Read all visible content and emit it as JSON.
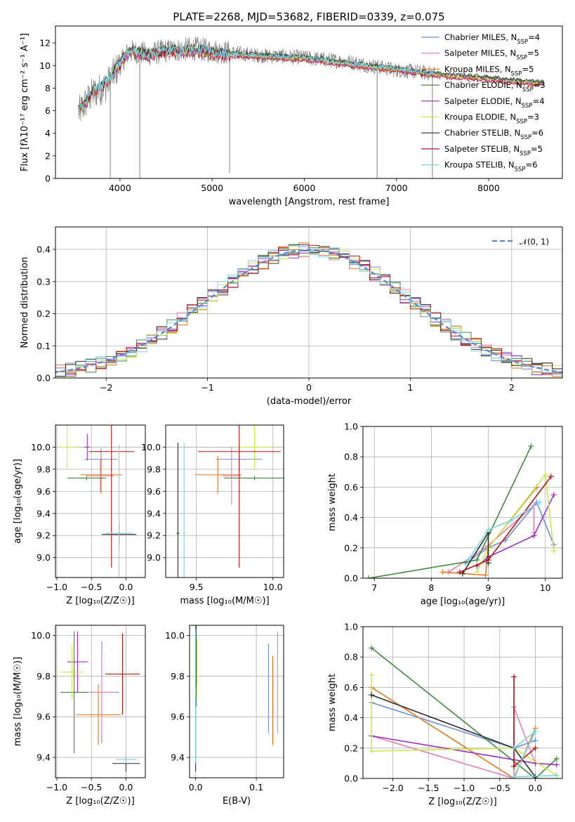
{
  "colors": {
    "Chabrier MILES": "#6b8fdc",
    "Salpeter MILES": "#e77fb3",
    "Kroupa MILES": "#e07a1f",
    "Chabrier ELODIE": "#3d8b3d",
    "Salpeter ELODIE": "#9c2fbf",
    "Kroupa ELODIE": "#c9e84d",
    "Chabrier STELIB": "#2b2b2b",
    "Salpeter STELIB": "#b31414",
    "Kroupa STELIB": "#7fd4e3"
  },
  "chart_data": [
    {
      "id": "spectrum",
      "type": "line",
      "title": "PLATE=2268, MJD=53682, FIBERID=0339, z=0.075",
      "xlabel": "wavelength [Angstrom, rest frame]",
      "ylabel": "Flux [fλ10⁻¹⁷ erg cm⁻² s⁻¹ A⁻¹]",
      "xlim": [
        3300,
        8800
      ],
      "ylim": [
        0,
        13.5
      ],
      "xticks": [
        4000,
        5000,
        6000,
        7000,
        8000
      ],
      "yticks": [
        0,
        2,
        4,
        6,
        8,
        10,
        12
      ],
      "grid": false,
      "legend_position": "top-right",
      "legend": [
        {
          "name": "Chabrier MILES",
          "nssp": "4"
        },
        {
          "name": "Salpeter MILES",
          "nssp": "5"
        },
        {
          "name": "Kroupa MILES",
          "nssp": "5"
        },
        {
          "name": "Chabrier ELODIE",
          "nssp": "3"
        },
        {
          "name": "Salpeter ELODIE",
          "nssp": "4"
        },
        {
          "name": "Kroupa ELODIE",
          "nssp": "3"
        },
        {
          "name": "Chabrier STELIB",
          "nssp": "6"
        },
        {
          "name": "Salpeter STELIB",
          "nssp": "5"
        },
        {
          "name": "Kroupa STELIB",
          "nssp": "6"
        }
      ],
      "data_continuum": {
        "x": [
          3550,
          3700,
          3850,
          3950,
          4100,
          4300,
          4500,
          4800,
          5100,
          5500,
          6000,
          6500,
          7000,
          7400
        ],
        "y": [
          5.8,
          7.5,
          8.2,
          9.5,
          11.3,
          11.0,
          11.3,
          11.5,
          11.2,
          10.9,
          10.7,
          10.3,
          9.6,
          9.3
        ]
      },
      "model_continuum": {
        "x": [
          3550,
          3700,
          3850,
          3950,
          4100,
          4300,
          4500,
          4800,
          5100,
          5500,
          6000,
          6500,
          7000,
          7500,
          8000,
          8500
        ],
        "y": [
          6.0,
          7.6,
          8.4,
          9.6,
          11.2,
          10.9,
          11.2,
          11.3,
          11.0,
          10.8,
          10.6,
          10.1,
          9.6,
          9.1,
          8.8,
          8.4
        ]
      }
    },
    {
      "id": "residuals",
      "type": "line",
      "xlabel": "(data-model)/error",
      "ylabel": "Normed distribution",
      "xlim": [
        -2.5,
        2.5
      ],
      "ylim": [
        0,
        0.47
      ],
      "xticks": [
        -2,
        -1,
        0,
        1,
        2
      ],
      "yticks": [
        0.0,
        0.1,
        0.2,
        0.3,
        0.4
      ],
      "grid": true,
      "legend": [
        "𝒩(0, 1)"
      ],
      "legend_position": "top-right"
    },
    {
      "id": "age_vs_Z",
      "type": "scatter",
      "xlabel": "Z [log₁₀(Z/Z☉)]",
      "ylabel": "age  [log₁₀(age/yr)]",
      "xlim": [
        -1.02,
        0.28
      ],
      "ylim": [
        8.82,
        10.2
      ],
      "xticks": [
        -1.0,
        -0.5,
        0.0
      ],
      "yticks": [
        9.0,
        9.2,
        9.4,
        9.6,
        9.8,
        10.0
      ],
      "grid": true
    },
    {
      "id": "age_vs_mass",
      "type": "scatter",
      "xlabel": "mass [log₁₀(M/M☉)]",
      "xlim": [
        9.3,
        10.07
      ],
      "ylim": [
        8.82,
        10.2
      ],
      "xticks": [
        9.5,
        10.0
      ],
      "yticks": [
        9.0,
        9.2,
        9.4,
        9.6,
        9.8,
        10.0
      ],
      "grid": true
    },
    {
      "id": "weight_vs_age",
      "type": "line",
      "xlabel": "age  [log₁₀(age/yr)]",
      "ylabel": "mass weight",
      "xlim": [
        6.8,
        10.3
      ],
      "ylim": [
        0,
        1.0
      ],
      "xticks": [
        7,
        8,
        9,
        10
      ],
      "yticks": [
        0.0,
        0.2,
        0.4,
        0.6,
        0.8,
        1.0
      ],
      "grid": true
    },
    {
      "id": "mass_vs_Z",
      "type": "scatter",
      "xlabel": "Z [log₁₀(Z/Z☉)]",
      "ylabel": "mass [log₁₀(M/M☉)]",
      "xlim": [
        -1.02,
        0.28
      ],
      "ylim": [
        9.3,
        10.05
      ],
      "xticks": [
        -1.0,
        -0.5,
        0.0
      ],
      "yticks": [
        9.4,
        9.6,
        9.8,
        10.0
      ],
      "grid": true
    },
    {
      "id": "mass_vs_ebv",
      "type": "scatter",
      "xlabel": "E(B-V)",
      "xlim": [
        -0.01,
        0.145
      ],
      "ylim": [
        9.3,
        10.05
      ],
      "xticks": [
        0.0,
        0.1
      ],
      "yticks": [
        9.4,
        9.6,
        9.8,
        10.0
      ],
      "grid": true
    },
    {
      "id": "weight_vs_Z",
      "type": "line",
      "xlabel": "Z [log₁₀(Z/Z☉)]",
      "ylabel": "mass weight",
      "xlim": [
        -2.42,
        0.38
      ],
      "ylim": [
        0,
        1.0
      ],
      "xticks": [
        -2.0,
        -1.5,
        -1.0,
        -0.5,
        0.0
      ],
      "yticks": [
        0.0,
        0.2,
        0.4,
        0.6,
        0.8,
        1.0
      ],
      "grid": true
    }
  ]
}
